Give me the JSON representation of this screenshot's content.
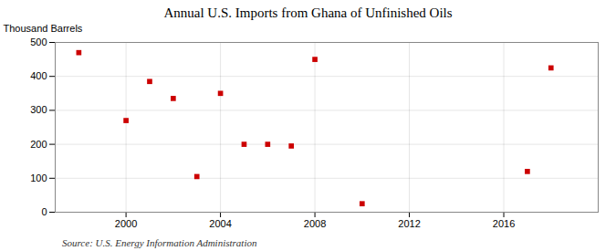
{
  "chart_data": {
    "type": "scatter",
    "title": "Annual U.S. Imports from Ghana of Unfinished Oils",
    "ylabel": "Thousand Barrels",
    "annotation": "Source: U.S. Energy Information Administration",
    "x": [
      1998,
      2000,
      2001,
      2002,
      2003,
      2004,
      2005,
      2006,
      2007,
      2008,
      2010,
      2017,
      2018
    ],
    "values": [
      470,
      270,
      385,
      335,
      105,
      350,
      200,
      200,
      195,
      450,
      25,
      120,
      425
    ],
    "xlim": [
      1997,
      2020
    ],
    "ylim": [
      0,
      500
    ],
    "xticks": [
      2000,
      2004,
      2008,
      2012,
      2016
    ],
    "yticks": [
      0,
      100,
      200,
      300,
      400,
      500
    ],
    "color": "#cc0000",
    "marker": "square",
    "grid": true
  }
}
